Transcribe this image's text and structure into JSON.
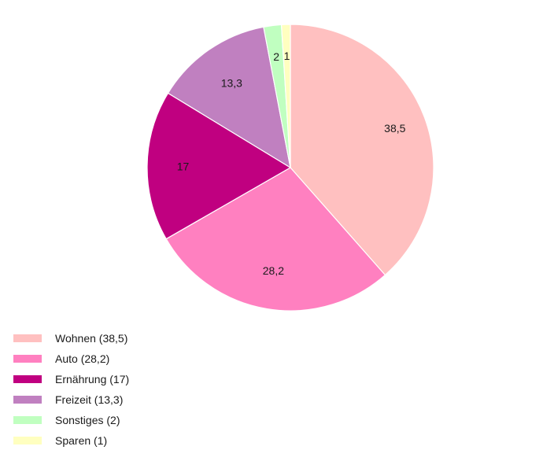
{
  "chart_data": {
    "type": "pie",
    "categories": [
      "Wohnen",
      "Auto",
      "Ernährung",
      "Freizeit",
      "Sonstiges",
      "Sparen"
    ],
    "values": [
      38.5,
      28.2,
      17,
      13.3,
      2,
      1
    ],
    "data_labels": [
      "38,5",
      "28,2",
      "17",
      "13,3",
      "2",
      "1"
    ],
    "legend_labels": [
      "Wohnen (38,5)",
      "Auto (28,2)",
      "Ernährung (17)",
      "Freizeit (13,3)",
      "Sonstiges (2)",
      "Sparen (1)"
    ],
    "colors": [
      "#ffc0c0",
      "#ff80c0",
      "#c00080",
      "#c080c0",
      "#c0ffc0",
      "#ffffc0"
    ],
    "start_angle": "12 o'clock",
    "direction": "clockwise",
    "legend_position": "bottom-left"
  }
}
